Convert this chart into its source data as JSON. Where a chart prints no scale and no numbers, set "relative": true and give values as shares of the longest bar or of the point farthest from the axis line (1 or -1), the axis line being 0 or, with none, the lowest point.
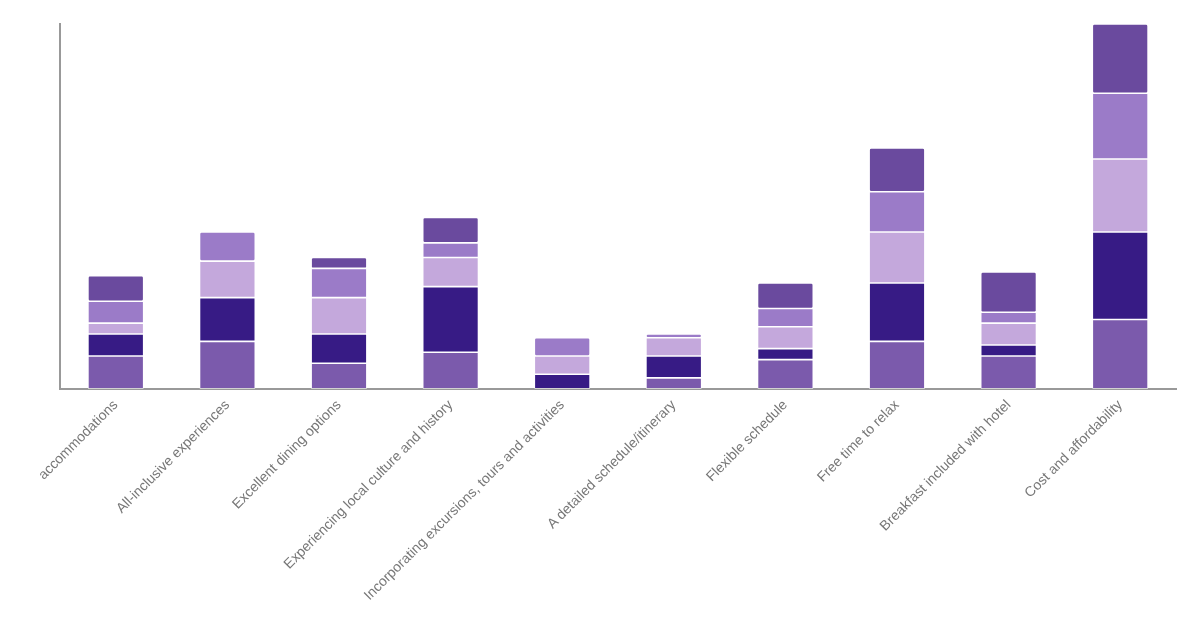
{
  "chart_data": {
    "type": "bar",
    "stacked": true,
    "relative": true,
    "grid": false,
    "legend": false,
    "categories": [
      "accommodations",
      "All-inclusive experiences",
      "Excellent dining options",
      "Experiencing local culture and history",
      "Incorporating excursions, tours and activities",
      "A detailed schedule/itinerary",
      "Flexible schedule",
      "Free time to relax",
      "Breakfast included with hotel",
      "Cost and affordability"
    ],
    "series": [
      {
        "color": "#7b5aac",
        "values": [
          0.09,
          0.13,
          0.07,
          0.1,
          0,
          0.03,
          0.08,
          0.13,
          0.09,
          0.19
        ]
      },
      {
        "color": "#371b85",
        "values": [
          0.06,
          0.12,
          0.08,
          0.18,
          0.04,
          0.06,
          0.03,
          0.16,
          0.03,
          0.24
        ]
      },
      {
        "color": "#c4a8dc",
        "values": [
          0.03,
          0.1,
          0.1,
          0.08,
          0.05,
          0.05,
          0.06,
          0.14,
          0.06,
          0.2
        ]
      },
      {
        "color": "#9b7bc8",
        "values": [
          0.06,
          0.08,
          0.08,
          0.04,
          0.05,
          0.01,
          0.05,
          0.11,
          0.03,
          0.18
        ]
      },
      {
        "color": "#6a4a9e",
        "values": [
          0.07,
          0,
          0.03,
          0.07,
          0,
          0,
          0.07,
          0.12,
          0.11,
          0.19
        ]
      }
    ]
  }
}
